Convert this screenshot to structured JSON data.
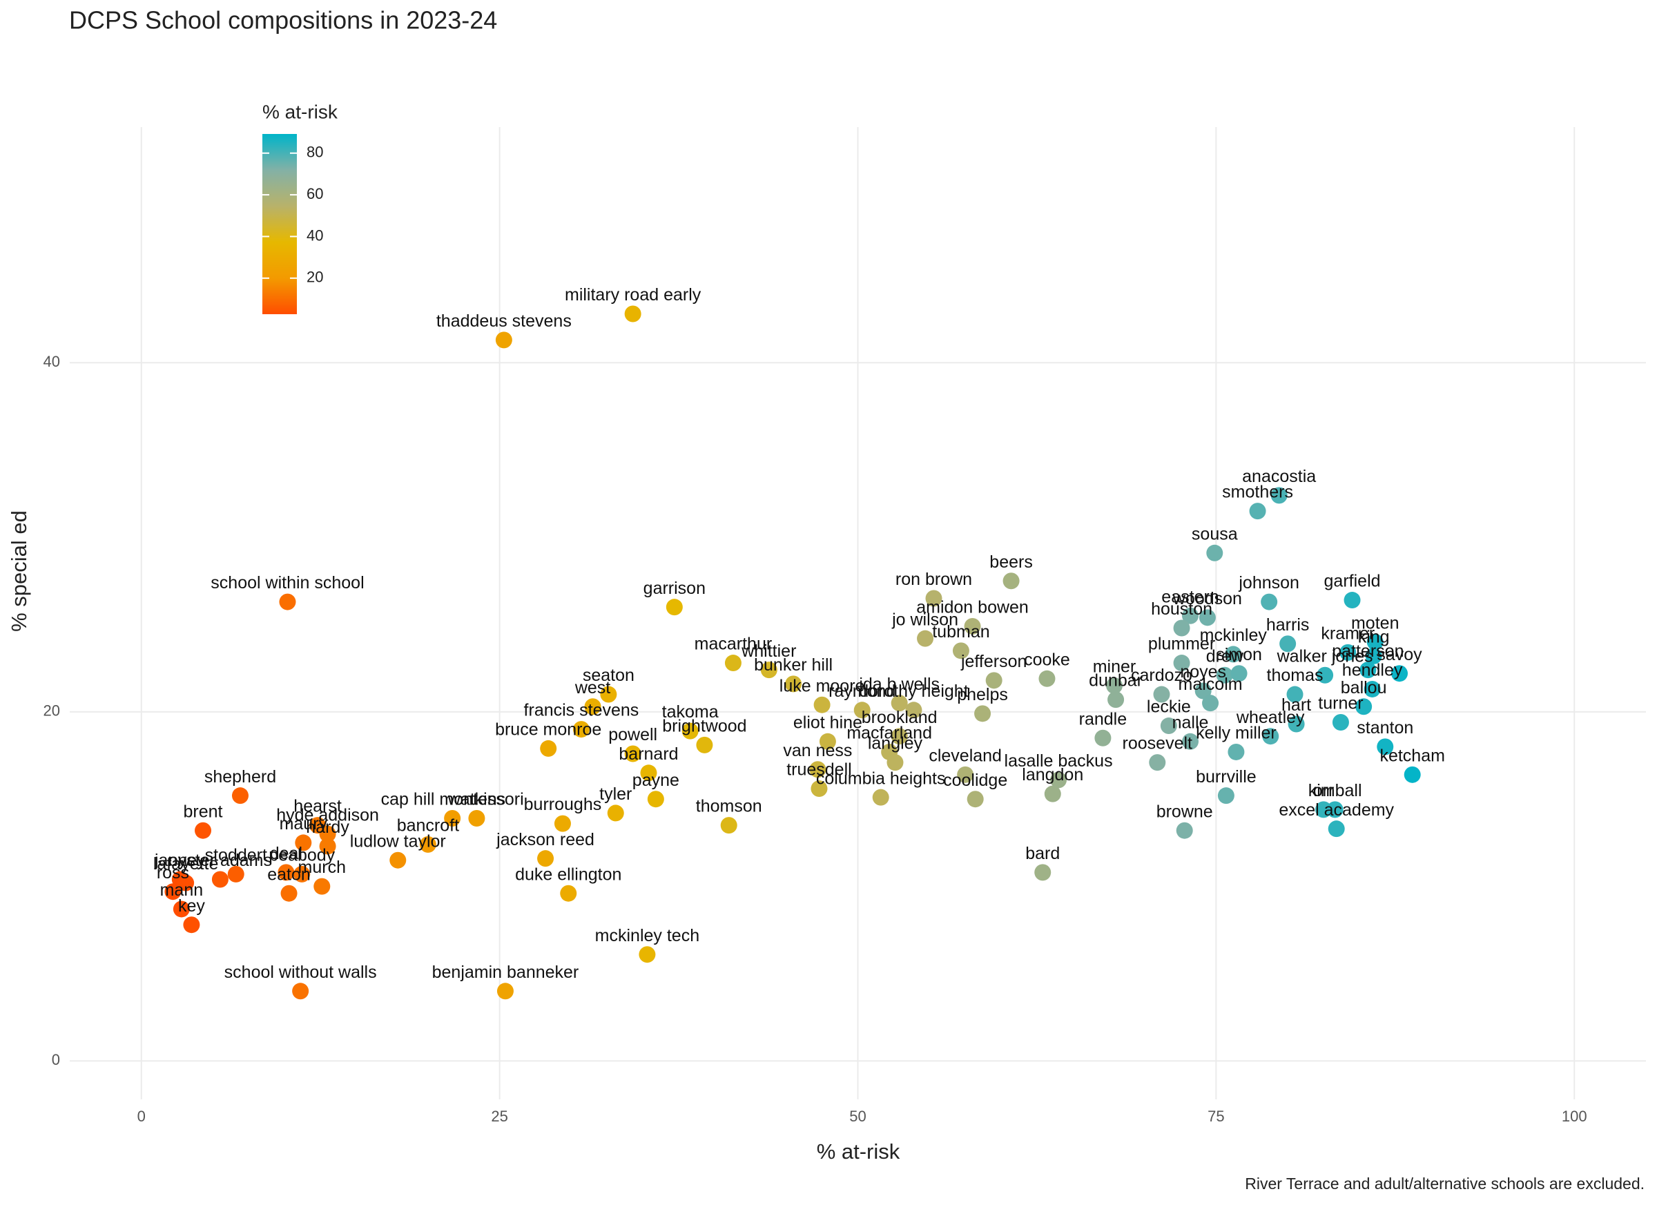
{
  "chart_data": {
    "type": "scatter",
    "title": "DCPS School compositions in 2023-24",
    "x_label": "% at-risk",
    "y_label": "% special ed",
    "caption": "River Terrace and adult/alternative schools are excluded.",
    "xlim": [
      -5,
      105
    ],
    "ylim": [
      -2.2,
      53.5
    ],
    "xticks": [
      0,
      25,
      50,
      75,
      100
    ],
    "yticks": [
      0,
      20,
      40
    ],
    "grid": true,
    "legend": {
      "title": "% at-risk",
      "ticks": [
        20,
        40,
        60,
        80
      ],
      "limits": [
        2.7,
        89.2
      ],
      "colors": [
        "#ff4d00",
        "#f39a00",
        "#e6b800",
        "#b8b26a",
        "#83b1a6",
        "#00b4c9"
      ]
    },
    "labels": [
      "military road early",
      "thaddeus stevens",
      "school within school",
      "garrison",
      "macarthur",
      "whittier",
      "bunker hill",
      "seaton",
      "west",
      "francis stevens",
      "luke moore",
      "raymond",
      "ida b wells",
      "dorothy height",
      "phelps",
      "takoma",
      "brightwood",
      "eliot hine",
      "van ness",
      "truesdell",
      "bruce monroe",
      "powell",
      "barnard",
      "payne",
      "tyler",
      "burroughs",
      "jackson reed",
      "thomson",
      "brookland",
      "macfarland",
      "langley",
      "columbia heights",
      "ron brown",
      "amidon bowen",
      "jo wilson",
      "tubman",
      "jefferson",
      "cooke",
      "beers",
      "sousa",
      "smothers",
      "anacostia",
      "eastern",
      "woodson",
      "houston",
      "plummer",
      "mckinley",
      "miner",
      "dunbar",
      "cardozo",
      "noyes",
      "malcolm",
      "drew",
      "simon",
      "johnson",
      "harris",
      "garfield",
      "kramer",
      "moten",
      "king",
      "patterson",
      "walker jones",
      "savoy",
      "hendley",
      "ballou",
      "thomas",
      "hart",
      "turner",
      "stanton",
      "ketcham",
      "leckie",
      "nalle",
      "roosevelt",
      "randle",
      "wheatley",
      "kelly miller",
      "burrville",
      "browne",
      "orr",
      "kimball",
      "excel academy",
      "bard",
      "langdon",
      "lasalle backus",
      "coolidge",
      "cleveland",
      "shepherd",
      "brent",
      "stoddert",
      "janney",
      "ross",
      "lafayette",
      "mann",
      "key",
      "oyster adams",
      "deal",
      "peabody",
      "eaton",
      "murch",
      "maury",
      "hearst",
      "hyde addison",
      "hardy",
      "school without walls",
      "ludlow taylor",
      "bancroft",
      "cap hill montessori",
      "watkins",
      "benjamin banneker",
      "duke ellington",
      "mckinley tech"
    ],
    "x": [
      34.3,
      25.3,
      10.2,
      37.2,
      41.3,
      43.8,
      45.5,
      32.6,
      31.5,
      30.7,
      47.5,
      50.3,
      52.9,
      53.9,
      58.7,
      38.3,
      39.3,
      47.9,
      47.2,
      47.3,
      28.4,
      34.3,
      35.4,
      35.9,
      33.1,
      29.4,
      28.2,
      41.0,
      52.9,
      52.2,
      52.6,
      51.6,
      55.3,
      58.0,
      54.7,
      57.2,
      59.5,
      63.2,
      60.7,
      74.9,
      77.9,
      79.4,
      73.2,
      74.4,
      72.6,
      72.6,
      76.2,
      67.9,
      68.0,
      71.2,
      74.1,
      74.6,
      75.6,
      76.6,
      78.7,
      80.0,
      84.5,
      84.2,
      86.1,
      86.0,
      85.6,
      82.6,
      87.8,
      85.9,
      85.3,
      80.5,
      80.6,
      83.7,
      86.8,
      88.7,
      71.7,
      73.2,
      70.9,
      67.1,
      78.8,
      76.4,
      75.7,
      72.8,
      82.5,
      83.3,
      83.4,
      62.9,
      63.6,
      64.0,
      58.2,
      57.5,
      6.9,
      4.3,
      6.6,
      2.7,
      2.2,
      3.1,
      2.8,
      3.5,
      5.5,
      10.1,
      11.2,
      10.3,
      12.6,
      11.3,
      12.3,
      13.0,
      13.0,
      11.1,
      17.9,
      20.0,
      21.7,
      23.4,
      25.4,
      29.8,
      35.3
    ],
    "values": [
      42.8,
      41.3,
      26.3,
      26.0,
      22.8,
      22.4,
      21.6,
      21.0,
      20.3,
      19.0,
      20.4,
      20.1,
      20.5,
      20.1,
      19.9,
      18.9,
      18.1,
      18.3,
      16.7,
      15.6,
      17.9,
      17.6,
      16.5,
      15.0,
      14.2,
      13.6,
      11.6,
      13.5,
      18.6,
      17.7,
      17.1,
      15.1,
      26.5,
      24.9,
      24.2,
      23.5,
      21.8,
      21.9,
      27.5,
      29.1,
      31.5,
      32.4,
      25.5,
      25.4,
      24.8,
      22.8,
      23.3,
      21.5,
      20.7,
      21.0,
      21.2,
      20.5,
      22.1,
      22.2,
      26.3,
      23.9,
      26.4,
      23.4,
      24.0,
      23.2,
      22.4,
      22.1,
      22.2,
      21.3,
      20.3,
      21.0,
      19.3,
      19.4,
      18.0,
      16.4,
      19.2,
      18.3,
      17.1,
      18.5,
      18.6,
      17.7,
      15.2,
      13.2,
      14.4,
      14.4,
      13.3,
      10.8,
      15.3,
      16.1,
      15.0,
      16.4,
      15.2,
      13.2,
      10.7,
      10.4,
      9.7,
      10.2,
      8.7,
      7.8,
      10.4,
      10.8,
      10.7,
      9.6,
      10.0,
      12.5,
      13.5,
      13.0,
      12.3,
      4.0,
      11.5,
      12.4,
      13.9,
      13.9,
      4.0,
      9.6,
      6.1
    ]
  }
}
